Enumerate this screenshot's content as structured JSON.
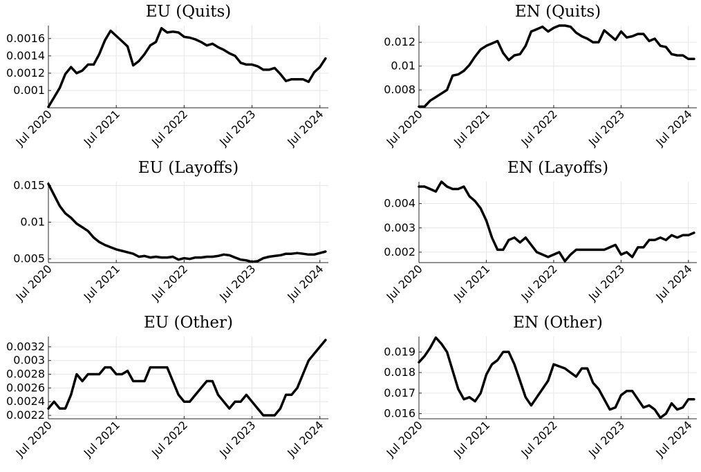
{
  "chart_data": [
    {
      "type": "line",
      "title": "EU (Quits)",
      "xticks": [
        "Jul 2020",
        "Jul 2021",
        "Jul 2022",
        "Jul 2023",
        "Jul 2024"
      ],
      "xlim": [
        0,
        49.5
      ],
      "yticks": [
        0.001,
        0.0012,
        0.0014,
        0.0016
      ],
      "ytick_labels": [
        "0.001",
        "0.0012",
        "0.0014",
        "0.0016"
      ],
      "ylim": [
        0.0008,
        0.00175
      ],
      "grid": true,
      "series": [
        {
          "values": [
            0.00081,
            0.00092,
            0.00103,
            0.00119,
            0.00127,
            0.0012,
            0.00123,
            0.0013,
            0.0013,
            0.00142,
            0.00158,
            0.00169,
            0.00163,
            0.00157,
            0.00151,
            0.00129,
            0.00134,
            0.00142,
            0.00152,
            0.00156,
            0.00172,
            0.00167,
            0.00168,
            0.00167,
            0.00162,
            0.00161,
            0.00159,
            0.00156,
            0.00152,
            0.00154,
            0.0015,
            0.00147,
            0.00143,
            0.0014,
            0.00132,
            0.0013,
            0.0013,
            0.00128,
            0.00124,
            0.00124,
            0.00126,
            0.00119,
            0.00111,
            0.00113,
            0.00113,
            0.00113,
            0.0011,
            0.00121,
            0.00127,
            0.00137
          ]
        }
      ]
    },
    {
      "type": "line",
      "title": "EN (Quits)",
      "xticks": [
        "Jul 2020",
        "Jul 2021",
        "Jul 2022",
        "Jul 2023",
        "Jul 2024"
      ],
      "xlim": [
        0,
        49.5
      ],
      "yticks": [
        0.008,
        0.01,
        0.012
      ],
      "ytick_labels": [
        "0.008",
        "0.01",
        "0.012"
      ],
      "ylim": [
        0.0065,
        0.0134
      ],
      "grid": true,
      "series": [
        {
          "values": [
            0.0066,
            0.0066,
            0.0071,
            0.0074,
            0.0077,
            0.008,
            0.0092,
            0.0093,
            0.0096,
            0.0101,
            0.0108,
            0.0114,
            0.0117,
            0.0119,
            0.0121,
            0.0111,
            0.0105,
            0.0109,
            0.011,
            0.0117,
            0.0129,
            0.0131,
            0.0133,
            0.0129,
            0.0132,
            0.0134,
            0.0134,
            0.0133,
            0.0128,
            0.0125,
            0.0123,
            0.012,
            0.012,
            0.013,
            0.0126,
            0.0122,
            0.0129,
            0.0124,
            0.0125,
            0.0127,
            0.0127,
            0.0121,
            0.0123,
            0.0117,
            0.0116,
            0.011,
            0.0109,
            0.0109,
            0.0106,
            0.0106
          ]
        }
      ]
    },
    {
      "type": "line",
      "title": "EU (Layoffs)",
      "xticks": [
        "Jul 2020",
        "Jul 2021",
        "Jul 2022",
        "Jul 2023",
        "Jul 2024"
      ],
      "xlim": [
        0,
        49.5
      ],
      "yticks": [
        0.005,
        0.01,
        0.015
      ],
      "ytick_labels": [
        "0.005",
        "0.01",
        "0.015"
      ],
      "ylim": [
        0.0045,
        0.0155
      ],
      "grid": true,
      "series": [
        {
          "values": [
            0.0152,
            0.0137,
            0.0122,
            0.0112,
            0.0106,
            0.0098,
            0.0093,
            0.0088,
            0.0079,
            0.0073,
            0.0069,
            0.0066,
            0.0063,
            0.0061,
            0.0059,
            0.0057,
            0.0053,
            0.0054,
            0.0052,
            0.0053,
            0.0052,
            0.0052,
            0.0053,
            0.0049,
            0.0051,
            0.005,
            0.0052,
            0.0052,
            0.0053,
            0.0053,
            0.0054,
            0.0056,
            0.0055,
            0.0052,
            0.0049,
            0.0048,
            0.0046,
            0.0047,
            0.0051,
            0.0053,
            0.0054,
            0.0055,
            0.0057,
            0.0057,
            0.0058,
            0.0057,
            0.0056,
            0.0056,
            0.0058,
            0.006
          ]
        }
      ]
    },
    {
      "type": "line",
      "title": "EN (Layoffs)",
      "xticks": [
        "Jul 2020",
        "Jul 2021",
        "Jul 2022",
        "Jul 2023",
        "Jul 2024"
      ],
      "xlim": [
        0,
        49.5
      ],
      "yticks": [
        0.002,
        0.003,
        0.004
      ],
      "ytick_labels": [
        "0.002",
        "0.003",
        "0.004"
      ],
      "ylim": [
        0.00157,
        0.0049
      ],
      "grid": true,
      "series": [
        {
          "values": [
            0.0047,
            0.0047,
            0.0046,
            0.0045,
            0.0049,
            0.0047,
            0.0046,
            0.0046,
            0.0047,
            0.0043,
            0.0041,
            0.0038,
            0.0033,
            0.0026,
            0.0021,
            0.0021,
            0.0025,
            0.0026,
            0.0024,
            0.0026,
            0.0023,
            0.002,
            0.0019,
            0.0018,
            0.0019,
            0.002,
            0.00163,
            0.0019,
            0.0021,
            0.0021,
            0.0021,
            0.0021,
            0.0021,
            0.0021,
            0.0022,
            0.0023,
            0.0019,
            0.002,
            0.0018,
            0.0022,
            0.0022,
            0.0025,
            0.0025,
            0.0026,
            0.0025,
            0.0027,
            0.0026,
            0.0027,
            0.0027,
            0.0028
          ]
        }
      ]
    },
    {
      "type": "line",
      "title": "EU (Other)",
      "xticks": [
        "Jul 2020",
        "Jul 2021",
        "Jul 2022",
        "Jul 2023",
        "Jul 2024"
      ],
      "xlim": [
        0,
        49.5
      ],
      "yticks": [
        0.0022,
        0.0024,
        0.0026,
        0.0028,
        0.003,
        0.0032
      ],
      "ytick_labels": [
        "0.0022",
        "0.0024",
        "0.0026",
        "0.0028",
        "0.003",
        "0.0032"
      ],
      "ylim": [
        0.00215,
        0.00335
      ],
      "grid": true,
      "series": [
        {
          "values": [
            0.0023,
            0.0024,
            0.0023,
            0.0023,
            0.0025,
            0.0028,
            0.0027,
            0.0028,
            0.0028,
            0.0028,
            0.0029,
            0.0029,
            0.0028,
            0.0028,
            0.00285,
            0.0027,
            0.0027,
            0.0027,
            0.0029,
            0.0029,
            0.0029,
            0.0029,
            0.0027,
            0.0025,
            0.0024,
            0.0024,
            0.0025,
            0.0026,
            0.0027,
            0.0027,
            0.0025,
            0.0024,
            0.0023,
            0.0024,
            0.0024,
            0.0025,
            0.0024,
            0.0023,
            0.0022,
            0.0022,
            0.0022,
            0.0023,
            0.0025,
            0.0025,
            0.0026,
            0.0028,
            0.003,
            0.0031,
            0.0032,
            0.0033
          ]
        }
      ]
    },
    {
      "type": "line",
      "title": "EN (Other)",
      "xticks": [
        "Jul 2020",
        "Jul 2021",
        "Jul 2022",
        "Jul 2023",
        "Jul 2024"
      ],
      "xlim": [
        0,
        49.5
      ],
      "yticks": [
        0.016,
        0.017,
        0.018,
        0.019
      ],
      "ytick_labels": [
        "0.016",
        "0.017",
        "0.018",
        "0.019"
      ],
      "ylim": [
        0.01575,
        0.01975
      ],
      "grid": true,
      "series": [
        {
          "values": [
            0.0185,
            0.0188,
            0.0192,
            0.0197,
            0.0194,
            0.019,
            0.0181,
            0.0172,
            0.0167,
            0.0168,
            0.0166,
            0.017,
            0.0179,
            0.0184,
            0.0186,
            0.019,
            0.019,
            0.0184,
            0.0176,
            0.0168,
            0.0164,
            0.0168,
            0.0172,
            0.0176,
            0.0184,
            0.0183,
            0.0182,
            0.018,
            0.0178,
            0.0182,
            0.0182,
            0.0175,
            0.0172,
            0.0167,
            0.0162,
            0.0163,
            0.0169,
            0.0171,
            0.0171,
            0.0167,
            0.0163,
            0.0164,
            0.0162,
            0.0158,
            0.016,
            0.0165,
            0.0162,
            0.0163,
            0.0167,
            0.0167
          ]
        }
      ]
    }
  ]
}
